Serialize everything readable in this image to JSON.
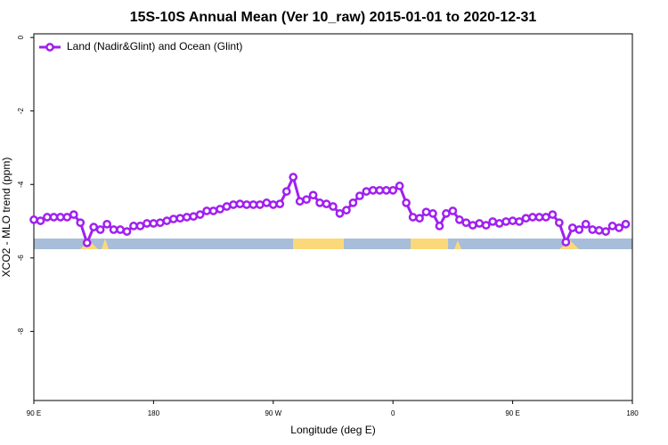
{
  "chart_data": {
    "type": "line",
    "title": "15S-10S Annual Mean (Ver 10_raw)   2015-01-01 to 2020-12-31",
    "xlabel": "Longitude (deg E)",
    "ylabel": "XCO2 - MLO trend (ppm)",
    "x": [
      90,
      95,
      100,
      105,
      110,
      115,
      120,
      125,
      130,
      135,
      140,
      145,
      150,
      155,
      160,
      165,
      170,
      175,
      180,
      185,
      190,
      195,
      200,
      205,
      210,
      215,
      220,
      225,
      230,
      235,
      240,
      245,
      250,
      255,
      260,
      265,
      270,
      275,
      280,
      285,
      290,
      295,
      300,
      305,
      310,
      315,
      320,
      325,
      330,
      335,
      340,
      345,
      350,
      355,
      360,
      365,
      370,
      375,
      380,
      385,
      390,
      395,
      400,
      405,
      410,
      415,
      420,
      425,
      430,
      435,
      440,
      445,
      450,
      455,
      460,
      465,
      470,
      475,
      480,
      485,
      490,
      495,
      500,
      505,
      510,
      515,
      520,
      525,
      530,
      535
    ],
    "series": [
      {
        "name": "Land (Nadir&Glint) and Ocean (Glint)",
        "color": "#a020f0",
        "values": [
          -4.96,
          -4.99,
          -4.89,
          -4.89,
          -4.89,
          -4.89,
          -4.82,
          -5.04,
          -5.59,
          -5.16,
          -5.23,
          -5.08,
          -5.23,
          -5.23,
          -5.28,
          -5.13,
          -5.13,
          -5.06,
          -5.06,
          -5.04,
          -4.99,
          -4.94,
          -4.92,
          -4.89,
          -4.87,
          -4.82,
          -4.72,
          -4.72,
          -4.67,
          -4.6,
          -4.55,
          -4.53,
          -4.55,
          -4.55,
          -4.55,
          -4.5,
          -4.55,
          -4.53,
          -4.19,
          -3.8,
          -4.46,
          -4.41,
          -4.29,
          -4.5,
          -4.53,
          -4.6,
          -4.79,
          -4.7,
          -4.5,
          -4.31,
          -4.19,
          -4.16,
          -4.16,
          -4.16,
          -4.16,
          -4.04,
          -4.5,
          -4.89,
          -4.92,
          -4.75,
          -4.79,
          -5.13,
          -4.79,
          -4.72,
          -4.96,
          -5.04,
          -5.11,
          -5.06,
          -5.11,
          -5.01,
          -5.06,
          -5.01,
          -4.99,
          -5.01,
          -4.92,
          -4.89,
          -4.89,
          -4.89,
          -4.82,
          -5.04,
          -5.57,
          -5.18,
          -5.23,
          -5.08,
          -5.23,
          -5.25,
          -5.28,
          -5.13,
          -5.18,
          -5.08
        ]
      }
    ],
    "xlim": [
      90,
      540
    ],
    "xticks": [
      {
        "value": 90,
        "label": "90 E"
      },
      180,
      {
        "value": 270,
        "label": "90 W"
      },
      {
        "value": 360,
        "label": "0"
      },
      {
        "value": 450,
        "label": "90 E"
      },
      {
        "value": 540,
        "label": "180"
      }
    ],
    "ylim": [
      -9.88,
      0.1
    ],
    "yticks": [
      0,
      -2,
      -4,
      -6,
      -8
    ],
    "legend": "upper left"
  }
}
